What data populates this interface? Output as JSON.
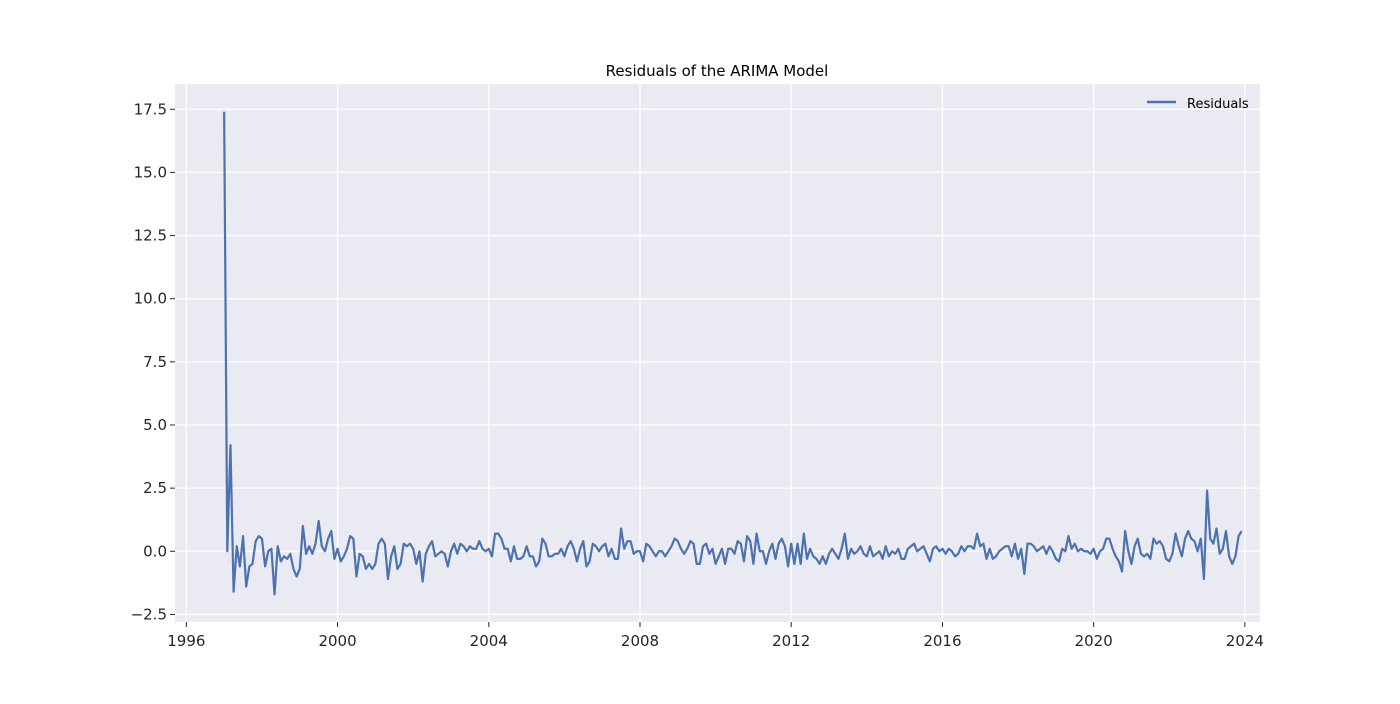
{
  "chart_data": {
    "type": "line",
    "title": "Residuals of the ARIMA Model",
    "xlabel": "",
    "ylabel": "",
    "xlim": [
      1995.7,
      2024.4
    ],
    "ylim": [
      -2.8,
      18.5
    ],
    "x_ticks": [
      1996,
      2000,
      2004,
      2008,
      2012,
      2016,
      2020,
      2024
    ],
    "y_ticks": [
      -2.5,
      0.0,
      2.5,
      5.0,
      7.5,
      10.0,
      12.5,
      15.0,
      17.5
    ],
    "y_tick_labels": [
      "−2.5",
      "0.0",
      "2.5",
      "5.0",
      "7.5",
      "10.0",
      "12.5",
      "15.0",
      "17.5"
    ],
    "grid": true,
    "legend_position": "top-right",
    "colors": {
      "background": "#eaeaf2",
      "grid": "#ffffff",
      "series": "#4c72b0",
      "text": "#262626"
    },
    "series": [
      {
        "name": "Residuals",
        "x_start": "1997-01",
        "frequency": "monthly",
        "values": [
          17.4,
          0.0,
          4.2,
          -1.6,
          0.2,
          -0.6,
          0.6,
          -1.4,
          -0.6,
          -0.5,
          0.4,
          0.6,
          0.5,
          -0.6,
          0.0,
          0.1,
          -1.7,
          0.2,
          -0.4,
          -0.2,
          -0.3,
          -0.1,
          -0.7,
          -1.0,
          -0.7,
          1.0,
          -0.1,
          0.2,
          -0.1,
          0.3,
          1.2,
          0.2,
          0.0,
          0.5,
          0.8,
          -0.3,
          0.1,
          -0.4,
          -0.2,
          0.1,
          0.6,
          0.5,
          -1.0,
          -0.1,
          -0.2,
          -0.7,
          -0.5,
          -0.7,
          -0.5,
          0.3,
          0.5,
          0.3,
          -1.1,
          -0.2,
          0.2,
          -0.7,
          -0.5,
          0.3,
          0.2,
          0.3,
          0.1,
          -0.5,
          0.0,
          -1.2,
          -0.1,
          0.2,
          0.4,
          -0.2,
          -0.1,
          0.0,
          -0.1,
          -0.6,
          0.0,
          0.3,
          -0.1,
          0.3,
          0.2,
          0.0,
          0.2,
          0.1,
          0.1,
          0.4,
          0.1,
          0.0,
          0.1,
          -0.2,
          0.7,
          0.7,
          0.5,
          0.1,
          0.1,
          -0.4,
          0.2,
          -0.3,
          -0.3,
          -0.2,
          0.2,
          -0.2,
          -0.2,
          -0.6,
          -0.4,
          0.5,
          0.3,
          -0.2,
          -0.2,
          -0.1,
          -0.1,
          0.1,
          -0.2,
          0.2,
          0.4,
          0.1,
          -0.4,
          0.1,
          0.4,
          -0.6,
          -0.4,
          0.3,
          0.2,
          0.0,
          0.2,
          0.3,
          -0.2,
          0.1,
          -0.3,
          -0.3,
          0.9,
          0.1,
          0.4,
          0.4,
          -0.1,
          0.0,
          0.0,
          -0.4,
          0.3,
          0.2,
          0.0,
          -0.2,
          0.0,
          0.0,
          -0.2,
          0.0,
          0.2,
          0.5,
          0.4,
          0.1,
          -0.1,
          0.1,
          0.4,
          0.3,
          -0.5,
          -0.5,
          0.2,
          0.3,
          -0.1,
          0.1,
          -0.5,
          -0.2,
          0.1,
          -0.5,
          0.1,
          0.1,
          -0.1,
          0.4,
          0.3,
          -0.4,
          0.6,
          0.4,
          -0.5,
          0.7,
          0.0,
          0.0,
          -0.5,
          0.0,
          0.3,
          -0.3,
          0.3,
          0.5,
          0.2,
          -0.6,
          0.3,
          -0.5,
          0.3,
          -0.5,
          0.7,
          -0.3,
          0.1,
          -0.2,
          -0.3,
          -0.5,
          -0.2,
          -0.5,
          -0.1,
          0.1,
          -0.1,
          -0.3,
          0.1,
          0.7,
          -0.3,
          0.1,
          -0.1,
          0.0,
          0.2,
          -0.1,
          -0.2,
          0.2,
          -0.2,
          -0.1,
          0.0,
          -0.3,
          0.2,
          -0.2,
          0.0,
          -0.1,
          0.1,
          -0.3,
          -0.3,
          0.1,
          0.2,
          0.3,
          0.0,
          0.1,
          0.2,
          -0.1,
          -0.4,
          0.1,
          0.2,
          0.0,
          0.1,
          -0.1,
          0.1,
          0.0,
          -0.2,
          -0.1,
          0.2,
          0.0,
          0.2,
          0.2,
          0.1,
          0.7,
          0.2,
          0.3,
          -0.3,
          0.1,
          -0.3,
          -0.2,
          0.0,
          0.1,
          0.2,
          0.2,
          -0.2,
          0.3,
          -0.3,
          0.1,
          -0.9,
          0.3,
          0.3,
          0.2,
          0.0,
          0.1,
          0.2,
          -0.1,
          0.2,
          0.0,
          -0.3,
          -0.4,
          0.1,
          0.0,
          0.6,
          0.1,
          0.3,
          0.0,
          0.1,
          0.0,
          0.0,
          -0.1,
          0.1,
          -0.3,
          0.0,
          0.1,
          0.5,
          0.5,
          0.1,
          -0.2,
          -0.4,
          -0.8,
          0.8,
          0.0,
          -0.5,
          0.2,
          0.5,
          -0.1,
          -0.2,
          -0.1,
          -0.3,
          0.5,
          0.3,
          0.4,
          0.2,
          -0.3,
          -0.4,
          -0.1,
          0.7,
          0.2,
          -0.2,
          0.5,
          0.8,
          0.5,
          0.4,
          0.0,
          0.5,
          -1.1,
          2.4,
          0.5,
          0.3,
          0.9,
          -0.1,
          0.1,
          0.8,
          -0.2,
          -0.5,
          -0.2,
          0.6,
          0.8
        ]
      }
    ]
  }
}
